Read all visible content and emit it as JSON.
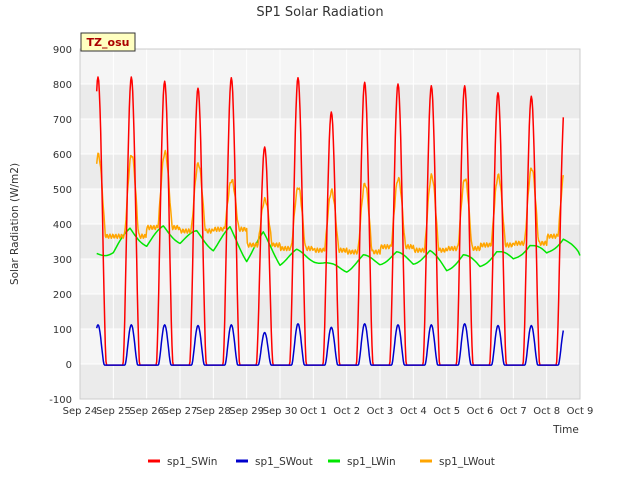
{
  "chart_data": {
    "type": "line",
    "title": "SP1 Solar Radiation",
    "xlabel": "Time",
    "ylabel": "Solar Radiation (W/m2)",
    "site_label": "TZ_osu",
    "ylim": [
      -100,
      900
    ],
    "xlim_days": [
      0,
      15
    ],
    "y_ticks": [
      -100,
      0,
      100,
      200,
      300,
      400,
      500,
      600,
      700,
      800,
      900
    ],
    "x_tick_labels": [
      "Sep 24",
      "Sep 25",
      "Sep 26",
      "Sep 27",
      "Sep 28",
      "Sep 29",
      "Sep 30",
      "Oct 1",
      "Oct 2",
      "Oct 3",
      "Oct 4",
      "Oct 5",
      "Oct 6",
      "Oct 7",
      "Oct 8",
      "Oct 9"
    ],
    "grid": true,
    "legend_position": "bottom",
    "x_range_note": "data spans Sep 24 12:00 to Oct 8 12:00",
    "series": [
      {
        "name": "sp1_SWin",
        "color": "#ff0000",
        "daily_peak": [
          820,
          808,
          788,
          818,
          620,
          818,
          720,
          805,
          800,
          795,
          795,
          775,
          765,
          742
        ],
        "note": "near 0 at night, sharp midday peaks; cloudy spikes on Sep 28 and Oct 1"
      },
      {
        "name": "sp1_SWout",
        "color": "#0000cc",
        "daily_peak": [
          112,
          112,
          110,
          112,
          90,
          115,
          105,
          115,
          112,
          112,
          115,
          110,
          110,
          105
        ],
        "note": "near 0 at night, midday peaks around 100-115"
      },
      {
        "name": "sp1_LWin",
        "color": "#00e600",
        "points": [
          [
            0.5,
            315
          ],
          [
            1.0,
            320
          ],
          [
            1.5,
            385
          ],
          [
            2.0,
            340
          ],
          [
            2.5,
            390
          ],
          [
            3.0,
            350
          ],
          [
            3.5,
            375
          ],
          [
            4.0,
            330
          ],
          [
            4.5,
            385
          ],
          [
            5.0,
            300
          ],
          [
            5.5,
            370
          ],
          [
            6.0,
            290
          ],
          [
            6.5,
            320
          ],
          [
            7.0,
            300
          ],
          [
            7.5,
            280
          ],
          [
            8.0,
            270
          ],
          [
            8.5,
            305
          ],
          [
            9.0,
            290
          ],
          [
            9.5,
            315
          ],
          [
            10.0,
            290
          ],
          [
            10.5,
            320
          ],
          [
            11.0,
            270
          ],
          [
            11.5,
            310
          ],
          [
            12.0,
            280
          ],
          [
            12.5,
            320
          ],
          [
            13.0,
            300
          ],
          [
            13.5,
            340
          ],
          [
            14.0,
            315
          ],
          [
            14.5,
            360
          ],
          [
            15.0,
            310
          ]
        ]
      },
      {
        "name": "sp1_LWout",
        "color": "#ffa500",
        "daily_peak": [
          598,
          605,
          572,
          525,
          470,
          505,
          495,
          515,
          530,
          538,
          530,
          538,
          560,
          555
        ],
        "night_level": [
          365,
          390,
          380,
          385,
          340,
          330,
          325,
          320,
          335,
          325,
          330,
          340,
          345,
          365
        ],
        "note": "smooth diurnal cycle with midday maxima"
      }
    ]
  }
}
